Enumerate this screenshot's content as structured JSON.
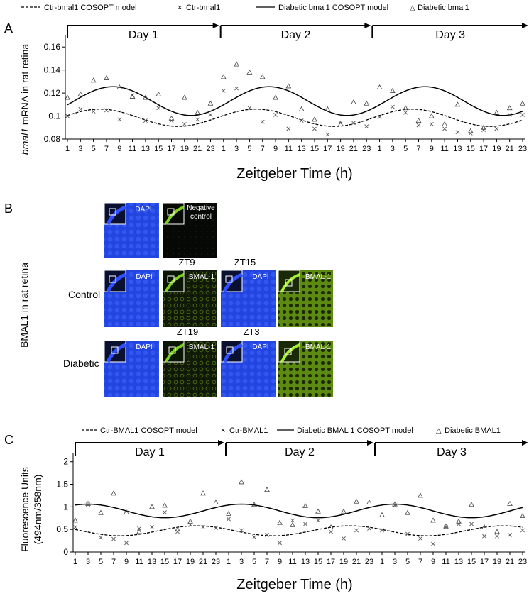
{
  "chart_data": [
    {
      "panel_label": "A",
      "type": "line+scatter",
      "xlabel": "Zeitgeber Time (h)",
      "ylabel_italic": "bmal1",
      "ylabel_rest": " mRNA in rat retina",
      "ylim": [
        0.08,
        0.17
      ],
      "yticks": [
        "0.08",
        "0.1",
        "0.12",
        "0.14",
        "0.16"
      ],
      "ytick_values": [
        0.08,
        0.1,
        0.12,
        0.14,
        0.16
      ],
      "x_hours_repeated": [
        "1",
        "3",
        "5",
        "7",
        "9",
        "11",
        "13",
        "15",
        "17",
        "19",
        "21",
        "23"
      ],
      "days": [
        "Day 1",
        "Day 2",
        "Day 3"
      ],
      "legend": [
        {
          "label": "Ctr-bmal1 COSOPT model",
          "style": "dashed-line"
        },
        {
          "label": "Ctr-bmal1",
          "style": "x-marker"
        },
        {
          "label": "Diabetic bmal1 COSOPT model",
          "style": "solid-line"
        },
        {
          "label": "Diabetic  bmal1",
          "style": "triangle-marker"
        }
      ],
      "model_ctr": {
        "mean": 0.0985,
        "amplitude": 0.0075,
        "peak_zt": 6
      },
      "model_diab": {
        "mean": 0.113,
        "amplitude": 0.0125,
        "peak_zt": 8
      },
      "series_ctr_x": [
        0.1,
        0.106,
        0.104,
        0.105,
        0.097,
        0.118,
        0.096,
        0.107,
        0.096,
        0.093,
        0.097,
        0.101,
        0.122,
        0.124,
        0.107,
        0.095,
        0.101,
        0.089,
        0.096,
        0.089,
        0.084,
        0.094,
        0.094,
        0.091,
        0.099,
        0.108,
        0.103,
        0.092,
        0.093,
        0.089,
        0.086,
        0.085,
        0.088,
        0.089,
        0.101,
        0.101
      ],
      "series_diab_tri": [
        0.116,
        0.119,
        0.131,
        0.133,
        0.125,
        0.117,
        0.116,
        0.119,
        0.098,
        0.116,
        0.103,
        0.111,
        0.134,
        0.145,
        0.138,
        0.134,
        0.116,
        0.126,
        0.106,
        0.097,
        0.106,
        0.093,
        0.112,
        0.111,
        0.125,
        0.122,
        0.107,
        0.096,
        0.1,
        0.093,
        0.11,
        0.087,
        0.09,
        0.103,
        0.107,
        0.111
      ]
    },
    {
      "panel_label": "C",
      "type": "line+scatter",
      "xlabel": "Zeitgeber Time (h)",
      "ylabel_line1": "Fluorescence Units",
      "ylabel_line2": "(494nm/358nm)",
      "ylim": [
        0,
        2.2
      ],
      "yticks": [
        "0",
        "0.5",
        "1",
        "1.5",
        "2"
      ],
      "ytick_values": [
        0,
        0.5,
        1,
        1.5,
        2
      ],
      "x_hours_repeated": [
        "1",
        "3",
        "5",
        "7",
        "9",
        "11",
        "13",
        "15",
        "17",
        "19",
        "21",
        "23"
      ],
      "days": [
        "Day 1",
        "Day 2",
        "Day 3"
      ],
      "legend": [
        {
          "label": "Ctr-BMAL1 COSOPT model",
          "style": "dashed-line"
        },
        {
          "label": "Ctr-BMAL1",
          "style": "x-marker"
        },
        {
          "label": "Diabetic BMAL 1 COSOPT model",
          "style": "solid-line"
        },
        {
          "label": "Diabetic BMAL1",
          "style": "triangle-marker"
        }
      ],
      "model_ctr": {
        "mean": 0.47,
        "amplitude": 0.11,
        "peak_zt": 20
      },
      "model_diab": {
        "mean": 0.91,
        "amplitude": 0.15,
        "peak_zt": 3
      },
      "series_ctr_x": [
        0.55,
        1.05,
        0.32,
        0.29,
        0.2,
        0.52,
        0.55,
        0.88,
        0.45,
        0.6,
        0.55,
        0.53,
        0.73,
        0.48,
        0.33,
        0.38,
        0.2,
        0.7,
        0.62,
        0.7,
        0.45,
        0.3,
        0.48,
        0.52,
        0.48,
        1.03,
        0.4,
        0.3,
        0.18,
        0.55,
        0.62,
        0.62,
        0.35,
        0.35,
        0.38,
        0.48
      ],
      "series_diab_tri": [
        0.7,
        1.07,
        0.87,
        1.3,
        0.88,
        0.45,
        1.0,
        1.03,
        0.5,
        0.68,
        1.3,
        1.1,
        0.85,
        1.55,
        1.05,
        1.38,
        0.65,
        0.6,
        1.02,
        0.9,
        0.55,
        0.9,
        1.12,
        1.1,
        0.82,
        1.06,
        0.87,
        1.25,
        0.7,
        0.57,
        0.68,
        1.05,
        0.55,
        0.45,
        1.07,
        0.8
      ]
    }
  ],
  "panel_b": {
    "panel_label": "B",
    "ylabel": "BMAL1 in rat retina",
    "row_labels": {
      "control": "Control",
      "diabetic": "Diabetic"
    },
    "negative_control": {
      "dapi": "DAPI",
      "line1": "Negative",
      "line2": "control"
    },
    "images": [
      {
        "zt": "ZT9",
        "dapi": "DAPI",
        "bmal": "BMAL-1"
      },
      {
        "zt": "ZT15",
        "dapi": "DAPI",
        "bmal": "BMAL-1"
      },
      {
        "zt": "ZT19",
        "dapi": "DAPI",
        "bmal": "BMAL-1"
      },
      {
        "zt": "ZT3",
        "dapi": "DAPI",
        "bmal": "BMAL-1"
      }
    ],
    "colors": {
      "dapi": "#1f3ce0",
      "bmal_dim": "#1a2a0a",
      "bmal_bright": "#86b21a"
    }
  }
}
